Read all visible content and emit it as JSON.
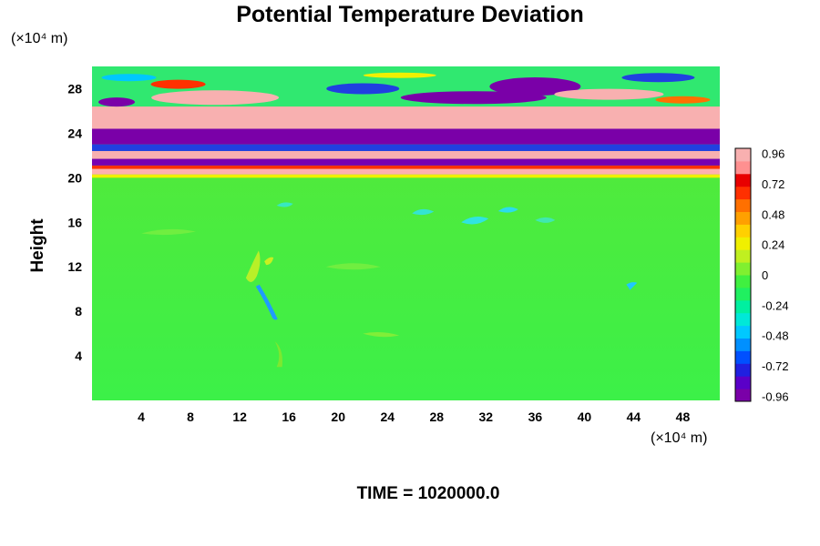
{
  "chart_data": {
    "type": "heatmap",
    "title": "Potential Temperature Deviation",
    "ylabel": "Height",
    "x_unit_label": "(×10⁴ m)",
    "y_unit_label": "(×10⁴ m)",
    "footer": "TIME = 1020000.0",
    "xlim": [
      0,
      51
    ],
    "ylim": [
      0,
      30
    ],
    "x_ticks": [
      4,
      8,
      12,
      16,
      20,
      24,
      28,
      32,
      36,
      40,
      44,
      48
    ],
    "y_ticks": [
      4,
      8,
      12,
      16,
      20,
      24,
      28
    ],
    "colorbar": {
      "min": -1.0,
      "max": 1.0,
      "tick_labels": [
        "0.96",
        "0.72",
        "0.48",
        "0.24",
        "0",
        "-0.24",
        "-0.48",
        "-0.72",
        "-0.96"
      ],
      "tick_values": [
        0.96,
        0.72,
        0.48,
        0.24,
        0,
        -0.24,
        -0.48,
        -0.72,
        -0.96
      ],
      "colors": [
        "#7a00a8",
        "#5a00c8",
        "#2020e0",
        "#0050ff",
        "#0090ff",
        "#00c8ff",
        "#00e8d8",
        "#00f0a0",
        "#20f060",
        "#40f040",
        "#80f030",
        "#c0f020",
        "#f0f000",
        "#ffd000",
        "#ffa000",
        "#ff7000",
        "#ff3000",
        "#e80000",
        "#ff9090",
        "#f8b0b0"
      ]
    }
  }
}
